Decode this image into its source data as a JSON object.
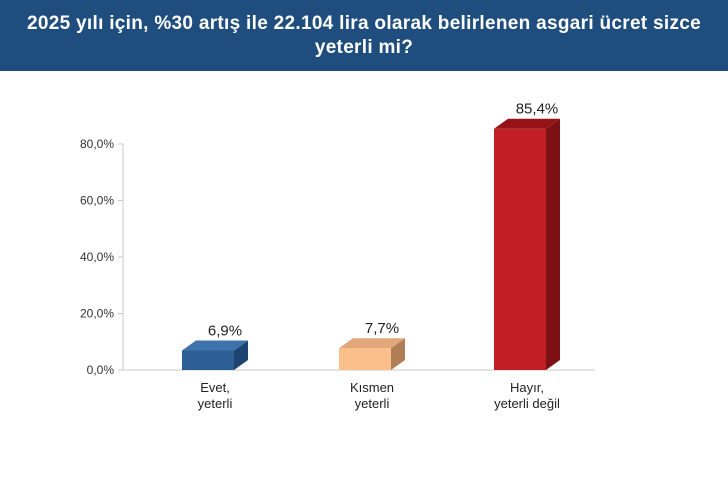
{
  "header": {
    "title": "2025 yılı için, %30 artış ile 22.104 lira olarak belirlenen asgari ücret sizce yeterli mi?"
  },
  "chart_data": {
    "type": "bar",
    "title": "2025 yılı için, %30 artış ile 22.104 lira olarak belirlenen asgari ücret sizce yeterli mi?",
    "categories": [
      [
        "Evet,",
        "yeterli"
      ],
      [
        "Kısmen",
        "yeterli"
      ],
      [
        "Hayır,",
        "yeterli değil"
      ]
    ],
    "values": [
      6.9,
      7.7,
      85.4
    ],
    "value_labels": [
      "6,9%",
      "7,7%",
      "85,4%"
    ],
    "ylim": [
      0,
      80
    ],
    "yticks": [
      0,
      20,
      40,
      60,
      80
    ],
    "ytick_labels": [
      "0,0%",
      "20,0%",
      "40,0%",
      "60,0%",
      "80,0%"
    ],
    "colors": [
      {
        "front": "#2e5f94",
        "side": "#1d4470",
        "top": "#3d72ab"
      },
      {
        "front": "#fbbf8c",
        "side": "#b07d56",
        "top": "#e2a778"
      },
      {
        "front": "#c11f25",
        "side": "#7d1014",
        "top": "#961419"
      }
    ],
    "grid": false,
    "legend": "none"
  }
}
